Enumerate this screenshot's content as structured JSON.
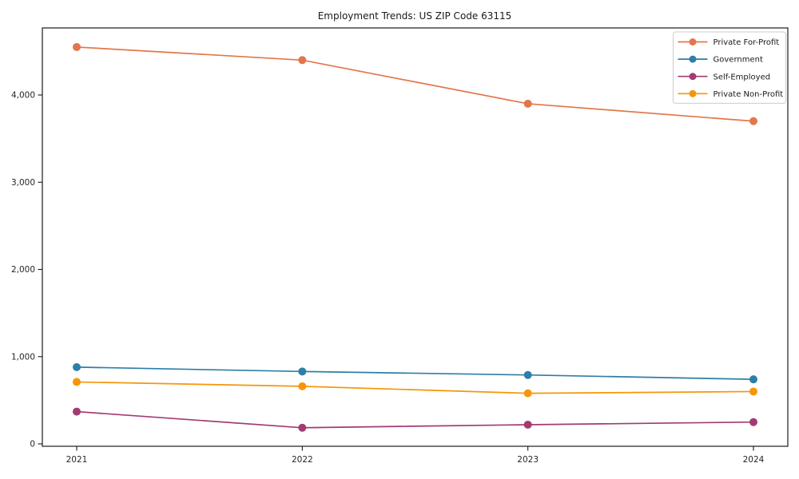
{
  "chart_data": {
    "type": "line",
    "title": "Employment Trends: US ZIP Code 63115",
    "xlabel": "",
    "ylabel": "",
    "x_categories": [
      "2021",
      "2022",
      "2023",
      "2024"
    ],
    "series": [
      {
        "name": "Private For-Profit",
        "color": "#E2774B",
        "values": [
          4550,
          4400,
          3900,
          3700
        ]
      },
      {
        "name": "Government",
        "color": "#2E7FA6",
        "values": [
          880,
          830,
          790,
          740
        ]
      },
      {
        "name": "Self-Employed",
        "color": "#A23B72",
        "values": [
          370,
          185,
          220,
          250
        ]
      },
      {
        "name": "Private Non-Profit",
        "color": "#F5960B",
        "values": [
          710,
          660,
          580,
          600
        ]
      }
    ],
    "yticks": [
      0,
      1000,
      2000,
      3000,
      4000
    ],
    "ytick_labels": [
      "0",
      "1,000",
      "2,000",
      "3,000",
      "4,000"
    ],
    "ylim": [
      0,
      4790
    ],
    "grid": false,
    "legend_position": "upper right",
    "marker": "o",
    "axis_color": "#1a1a1a",
    "tick_label_color": "#262626",
    "legend_border_color": "#cccccc",
    "plot_background": "#ffffff"
  }
}
